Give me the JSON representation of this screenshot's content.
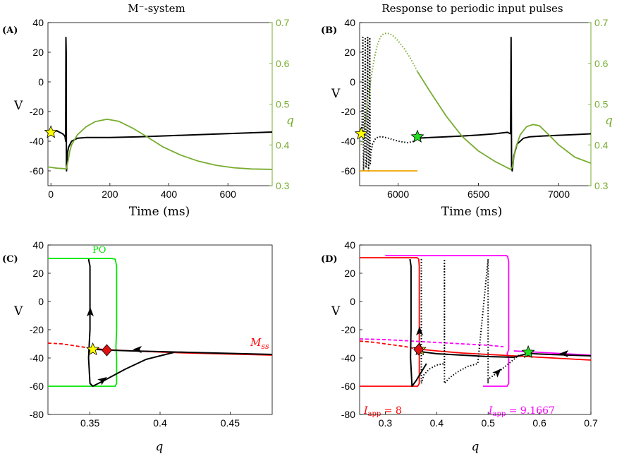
{
  "colors": {
    "black": "#000000",
    "green_q": "#77ac30",
    "po_green": "#00e600",
    "red": "#ff0000",
    "magenta": "#ff00ff",
    "orange": "#f0a500",
    "yellow_star": "#ffff00",
    "green_star": "#22dd22",
    "diamond": "#dd1111"
  },
  "panels": {
    "A": {
      "label": "(A)",
      "title": "M⁻-system",
      "xlabel": "Time (ms)",
      "ylabel": "V",
      "ylabel_right": "q",
      "xticks": [
        "0",
        "200",
        "400",
        "600"
      ],
      "yticks": [
        "40",
        "20",
        "0",
        "-20",
        "-40",
        "-60"
      ],
      "yticks_right": [
        "0.7",
        "0.6",
        "0.5",
        "0.4",
        "0.3"
      ]
    },
    "B": {
      "label": "(B)",
      "title": "Response to periodic input pulses",
      "xlabel": "Time (ms)",
      "ylabel": "V",
      "ylabel_right": "q",
      "xticks": [
        "6000",
        "6500",
        "7000"
      ],
      "yticks": [
        "40",
        "20",
        "0",
        "-20",
        "-40",
        "-60"
      ],
      "yticks_right": [
        "0.7",
        "0.6",
        "0.5",
        "0.4",
        "0.3"
      ]
    },
    "C": {
      "label": "(C)",
      "xlabel": "q",
      "ylabel": "V",
      "xticks": [
        "0.35",
        "0.4",
        "0.45"
      ],
      "yticks": [
        "40",
        "20",
        "0",
        "-20",
        "-40",
        "-60",
        "-80"
      ],
      "po_label": "PO",
      "mss_label": "M",
      "mss_sub": "ss"
    },
    "D": {
      "label": "(D)",
      "xlabel": "q",
      "ylabel": "V",
      "xticks": [
        "0.3",
        "0.4",
        "0.5",
        "0.6",
        "0.7"
      ],
      "yticks": [
        "40",
        "20",
        "0",
        "-20",
        "-40",
        "-60",
        "-80"
      ],
      "iapp_red_label": "I",
      "iapp_red_sub": "app",
      "iapp_red_value": " = 8",
      "iapp_mag_label": "I",
      "iapp_mag_sub": "app",
      "iapp_mag_value": " = 9.1667"
    }
  },
  "chart_data": [
    {
      "panel": "A",
      "type": "line",
      "title": "M⁻-system",
      "xlabel": "Time (ms)",
      "ylabel": "V",
      "ylabel_right": "q",
      "xlim": [
        -10,
        750
      ],
      "ylim": [
        -70,
        40
      ],
      "ylim_right": [
        0.3,
        0.7
      ],
      "series": [
        {
          "axis": "left",
          "color": "#000000",
          "x": [
            -10,
            0,
            10,
            20,
            30,
            40,
            45,
            48,
            50,
            51,
            52,
            52.5,
            53,
            54,
            56,
            60,
            70,
            90,
            120,
            160,
            200,
            300,
            400,
            500,
            600,
            700,
            750
          ],
          "y": [
            -34,
            -34,
            -33.5,
            -33,
            -34,
            -35,
            -36,
            -37,
            -40,
            30,
            20,
            -56,
            -60,
            -54,
            -48,
            -44,
            -40,
            -38,
            -37.5,
            -37.5,
            -37.5,
            -37,
            -36.3,
            -35.6,
            -34.9,
            -34.2,
            -33.8
          ]
        },
        {
          "axis": "right",
          "color": "#77ac30",
          "x": [
            -10,
            0,
            20,
            40,
            52,
            58,
            64,
            70,
            90,
            120,
            150,
            190,
            230,
            280,
            330,
            380,
            440,
            500,
            560,
            620,
            680,
            750
          ],
          "y": [
            0.346,
            0.345,
            0.343,
            0.342,
            0.341,
            0.36,
            0.385,
            0.4,
            0.425,
            0.445,
            0.457,
            0.463,
            0.458,
            0.44,
            0.418,
            0.395,
            0.375,
            0.36,
            0.35,
            0.344,
            0.341,
            0.34
          ]
        }
      ],
      "markers": [
        {
          "shape": "star",
          "color": "#ffff00",
          "x": 0,
          "y": -34
        }
      ]
    },
    {
      "panel": "B",
      "type": "line",
      "title": "Response to periodic input pulses",
      "xlabel": "Time (ms)",
      "ylabel": "V",
      "ylabel_right": "q",
      "xlim": [
        5760,
        7200
      ],
      "ylim": [
        -70,
        40
      ],
      "ylim_right": [
        0.3,
        0.7
      ],
      "series": [
        {
          "axis": "left",
          "color": "#000000",
          "style": "dotted",
          "x": [
            5770,
            5775,
            5780,
            5784,
            5787,
            5790,
            5795,
            5800,
            5803,
            5806,
            5810,
            5815,
            5820,
            5823,
            5826,
            5830,
            5840,
            5860,
            5880,
            5900,
            5940,
            6000,
            6060,
            6100,
            6120
          ],
          "y": [
            -35,
            -32,
            30,
            -60,
            -50,
            -45,
            30,
            -58,
            -55,
            -48,
            30,
            -60,
            -52,
            30,
            -56,
            -48,
            -42,
            -38,
            -37,
            -37,
            -38,
            -40,
            -41,
            -40,
            -38
          ]
        },
        {
          "axis": "left",
          "color": "#000000",
          "style": "solid",
          "x": [
            6120,
            6200,
            6300,
            6400,
            6500,
            6600,
            6680,
            6700,
            6703,
            6706,
            6710,
            6720,
            6740,
            6780,
            6820,
            6900,
            7000,
            7100,
            7200
          ],
          "y": [
            -38,
            -37.5,
            -37,
            -36.5,
            -35.8,
            -35,
            -34,
            -35,
            30,
            -58,
            -60,
            -50,
            -42,
            -38,
            -37,
            -36.5,
            -36,
            -35.5,
            -35
          ]
        },
        {
          "axis": "right",
          "color": "#77ac30",
          "style": "dotted",
          "x": [
            5770,
            5790,
            5810,
            5830,
            5850,
            5870,
            5890,
            5910,
            5930,
            5950,
            5970,
            6000,
            6040,
            6080,
            6120
          ],
          "y": [
            0.4,
            0.44,
            0.5,
            0.56,
            0.61,
            0.645,
            0.665,
            0.673,
            0.674,
            0.672,
            0.667,
            0.655,
            0.635,
            0.61,
            0.58
          ]
        },
        {
          "axis": "right",
          "color": "#77ac30",
          "style": "solid",
          "x": [
            6120,
            6200,
            6300,
            6400,
            6500,
            6600,
            6700,
            6710,
            6730,
            6760,
            6800,
            6840,
            6880,
            6950,
            7000,
            7100,
            7200
          ],
          "y": [
            0.58,
            0.53,
            0.47,
            0.42,
            0.385,
            0.36,
            0.34,
            0.345,
            0.39,
            0.425,
            0.445,
            0.45,
            0.447,
            0.42,
            0.4,
            0.37,
            0.355
          ]
        },
        {
          "axis": "left",
          "color": "#f0a500",
          "style": "solid",
          "x": [
            5760,
            6120
          ],
          "y": [
            -60,
            -60
          ]
        }
      ],
      "markers": [
        {
          "shape": "star",
          "color": "#ffff00",
          "x": 5770,
          "y": -35
        },
        {
          "shape": "star",
          "color": "#22dd22",
          "x": 6120,
          "y": -37
        }
      ]
    },
    {
      "panel": "C",
      "type": "line",
      "xlabel": "q",
      "ylabel": "V",
      "xlim": [
        0.32,
        0.48
      ],
      "ylim": [
        -80,
        40
      ],
      "series": [
        {
          "name": "PO",
          "color": "#00e600",
          "style": "solid",
          "x": [
            0.32,
            0.365,
            0.368,
            0.369,
            0.369,
            0.3685,
            0.369,
            0.369,
            0.368,
            0.32
          ],
          "y": [
            30.5,
            30.5,
            30,
            25,
            -20,
            -32,
            -40,
            -58,
            -60,
            -60
          ]
        },
        {
          "name": "Mss-dashed",
          "color": "#ff0000",
          "style": "dashed",
          "x": [
            0.32,
            0.33,
            0.34,
            0.35
          ],
          "y": [
            -29.5,
            -30,
            -31.5,
            -33
          ]
        },
        {
          "name": "Mss",
          "color": "#ff0000",
          "style": "solid",
          "x": [
            0.35,
            0.36,
            0.38,
            0.4,
            0.42,
            0.44,
            0.46,
            0.48
          ],
          "y": [
            -33,
            -34,
            -35,
            -35.8,
            -36.5,
            -37,
            -37.5,
            -38
          ]
        },
        {
          "name": "trajectory",
          "color": "#000000",
          "style": "solid",
          "x": [
            0.48,
            0.46,
            0.44,
            0.42,
            0.4,
            0.38,
            0.365,
            0.355
          ],
          "y": [
            -37.5,
            -37,
            -36.5,
            -36,
            -35.5,
            -35,
            -34.5,
            -34
          ]
        },
        {
          "name": "trajectory2",
          "color": "#000000",
          "style": "solid",
          "x": [
            0.349,
            0.35,
            0.35,
            0.349,
            0.35,
            0.352,
            0.36,
            0.375,
            0.39,
            0.41
          ],
          "y": [
            30,
            25,
            -20,
            -40,
            -58,
            -60,
            -56,
            -48,
            -41,
            -36
          ]
        }
      ],
      "markers": [
        {
          "shape": "star",
          "color": "#ffff00",
          "x": 0.352,
          "y": -34
        },
        {
          "shape": "diamond",
          "color": "#dd1111",
          "x": 0.362,
          "y": -34.5
        }
      ]
    },
    {
      "panel": "D",
      "type": "line",
      "xlabel": "q",
      "ylabel": "V",
      "xlim": [
        0.25,
        0.7
      ],
      "ylim": [
        -80,
        40
      ],
      "series": [
        {
          "name": "red-PO",
          "color": "#ff0000",
          "style": "solid",
          "x": [
            0.25,
            0.362,
            0.365,
            0.366,
            0.366,
            0.363,
            0.25
          ],
          "y": [
            31,
            31,
            30,
            25,
            -58,
            -60,
            -60
          ]
        },
        {
          "name": "magenta-PO",
          "color": "#ff00ff",
          "style": "solid",
          "x": [
            0.3,
            0.535,
            0.538,
            0.54,
            0.54,
            0.537,
            0.54,
            0.54,
            0.537,
            0.49
          ],
          "y": [
            32.5,
            32.5,
            32,
            28,
            -34,
            -37,
            -40,
            -58,
            -60,
            -60
          ]
        },
        {
          "name": "red-dashed",
          "color": "#ff0000",
          "style": "dashed",
          "x": [
            0.25,
            0.28,
            0.31,
            0.34,
            0.36
          ],
          "y": [
            -28,
            -29,
            -30.5,
            -32,
            -33.5
          ]
        },
        {
          "name": "red-solid",
          "color": "#ff0000",
          "style": "solid",
          "x": [
            0.36,
            0.4,
            0.45,
            0.5,
            0.55,
            0.6,
            0.65,
            0.7
          ],
          "y": [
            -33.5,
            -35,
            -36.5,
            -37.5,
            -38.5,
            -39.5,
            -40.5,
            -41.5
          ]
        },
        {
          "name": "magenta-dashed",
          "color": "#ff00ff",
          "style": "dashed",
          "x": [
            0.25,
            0.3,
            0.35,
            0.4,
            0.45,
            0.5,
            0.53
          ],
          "y": [
            -26.5,
            -27,
            -28,
            -29,
            -30,
            -31,
            -32
          ]
        },
        {
          "name": "magenta-solid",
          "color": "#ff00ff",
          "style": "solid",
          "x": [
            0.55,
            0.6,
            0.65,
            0.7
          ],
          "y": [
            -35,
            -36,
            -37,
            -38
          ]
        },
        {
          "name": "traj-black",
          "color": "#000000",
          "style": "solid",
          "x": [
            0.348,
            0.35,
            0.35,
            0.349,
            0.352,
            0.36,
            0.37,
            0.38
          ],
          "y": [
            30,
            25,
            -20,
            -40,
            -60,
            -56,
            -50,
            -44
          ]
        },
        {
          "name": "traj-black2",
          "color": "#000000",
          "style": "solid",
          "x": [
            0.358,
            0.4,
            0.45,
            0.5,
            0.55,
            0.575
          ],
          "y": [
            -35,
            -37,
            -38,
            -39,
            -39.5,
            -37
          ]
        },
        {
          "name": "traj-black3",
          "color": "#000000",
          "style": "solid",
          "x": [
            0.7,
            0.66,
            0.62,
            0.59,
            0.575
          ],
          "y": [
            -38.5,
            -38,
            -37.5,
            -37,
            -36.5
          ]
        },
        {
          "name": "traj-dotted",
          "color": "#000000",
          "style": "dotted",
          "x": [
            0.37,
            0.37,
            0.37,
            0.375,
            0.385,
            0.4,
            0.415,
            0.415,
            0.415,
            0.425,
            0.44,
            0.46,
            0.48,
            0.5,
            0.5,
            0.5,
            0.52,
            0.54,
            0.56
          ],
          "y": [
            30,
            -20,
            -58,
            -52,
            -48,
            -45,
            -44,
            30,
            -58,
            -54,
            -50,
            -46,
            -44,
            30,
            -58,
            -55,
            -50,
            -44,
            -38
          ]
        }
      ],
      "markers": [
        {
          "shape": "star",
          "color": "#ffff00",
          "x": 0.367,
          "y": -34
        },
        {
          "shape": "diamond",
          "color": "#dd1111",
          "x": 0.365,
          "y": -34
        },
        {
          "shape": "star",
          "color": "#22dd22",
          "x": 0.578,
          "y": -36
        }
      ]
    }
  ]
}
